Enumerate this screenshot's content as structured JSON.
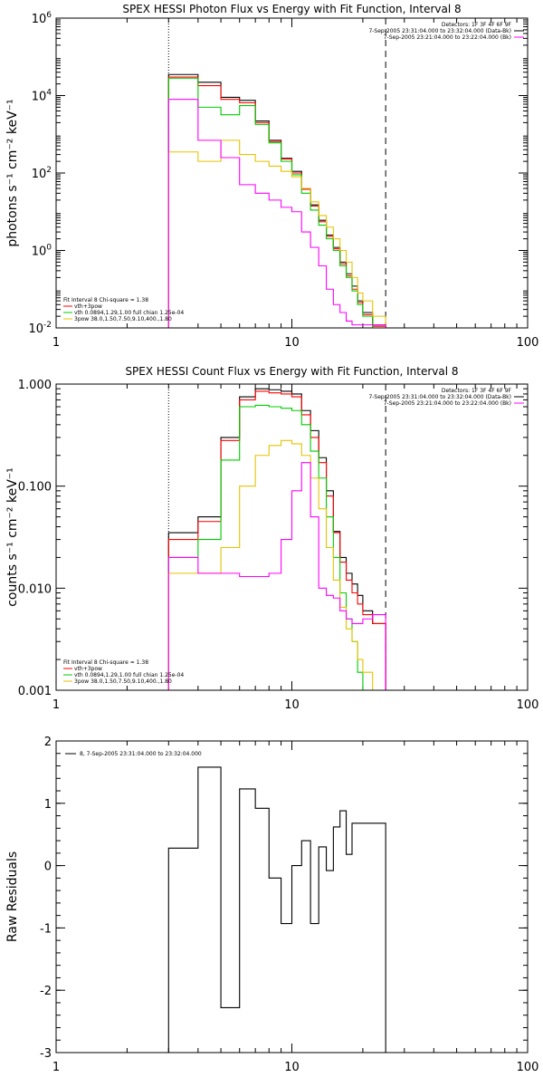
{
  "chart_data": [
    {
      "type": "line",
      "title": "SPEX HESSI Photon Flux vs Energy with Fit Function, Interval 8",
      "xlabel": "",
      "ylabel": "photons s⁻¹ cm⁻² keV⁻¹",
      "xscale": "log",
      "yscale": "log",
      "xlim": [
        1,
        100
      ],
      "ylim": [
        0.01,
        1000000
      ],
      "xticks": [
        1,
        10,
        100
      ],
      "xtick_labels": [
        "1",
        "10",
        "100"
      ],
      "yticks": [
        0.01,
        1,
        100,
        10000,
        1000000
      ],
      "ytick_labels": [
        {
          "base": "10",
          "exp": "-2"
        },
        {
          "base": "10",
          "exp": "0"
        },
        {
          "base": "10",
          "exp": "2"
        },
        {
          "base": "10",
          "exp": "4"
        },
        {
          "base": "10",
          "exp": "6"
        }
      ],
      "vlines": [
        {
          "x": 3,
          "style": "dotted"
        },
        {
          "x": 25,
          "style": "dashed"
        }
      ],
      "info_lines": [
        "Detectors: 1F 3F 4F 6F 9F",
        "7-Sep-2005 23:31:04.000 to 23:32:04.000 (Data-Bk)",
        "7-Sep-2005 23:21:04.000 to 23:22:04.000 (Bk)"
      ],
      "info_colors": [
        "#000000",
        "#000000",
        "#ff00ff"
      ],
      "legend_lines": [
        "Fit Interval 8   Chi-square = 1.38",
        "vth+3pow",
        "vth 0.0894,1.29,1.00  full chian 1.25e-04",
        "3pow 38.0,1.50,7.50,9.10,400.,1.80"
      ],
      "legend_colors": [
        "",
        "#ff0000",
        "#00cc00",
        "#e6c300"
      ],
      "edges": [
        3,
        4,
        5,
        6,
        7,
        8,
        9,
        10,
        11,
        12,
        13,
        14,
        15,
        16,
        17,
        18,
        19,
        20,
        22,
        25
      ],
      "series": [
        {
          "color": "#000000",
          "values": [
            35000,
            22000,
            9000,
            7500,
            2200,
            700,
            240,
            110,
            40,
            15,
            6,
            2.5,
            1.2,
            0.5,
            0.25,
            0.12,
            0.05,
            0.025,
            0.012
          ]
        },
        {
          "color": "#ff0000",
          "values": [
            30000,
            18000,
            8000,
            6500,
            2000,
            650,
            230,
            100,
            38,
            14,
            5.5,
            2.3,
            1.1,
            0.45,
            0.22,
            0.1,
            0.045,
            0.022,
            0.011
          ]
        },
        {
          "color": "#00cc00",
          "values": [
            28000,
            5000,
            3200,
            5500,
            1800,
            600,
            200,
            90,
            30,
            11,
            4.5,
            2,
            1,
            0.4,
            0.2,
            0.09,
            0.04,
            0.02,
            0.008
          ]
        },
        {
          "color": "#e6c300",
          "values": [
            350,
            200,
            700,
            300,
            200,
            150,
            110,
            80,
            40,
            18,
            8,
            4,
            2,
            1,
            0.5,
            0.2,
            0.08,
            0.05,
            0.02
          ]
        },
        {
          "color": "#ff00ff",
          "values": [
            8000,
            700,
            250,
            50,
            30,
            20,
            13,
            10,
            3,
            1.2,
            0.4,
            0.1,
            0.04,
            0.025,
            0.015,
            0.012,
            0.012,
            0.012,
            0.012
          ]
        }
      ]
    },
    {
      "type": "line",
      "title": "SPEX HESSI Count Flux vs Energy with Fit Function, Interval 8",
      "xlabel": "",
      "ylabel": "counts s⁻¹ cm⁻² keV⁻¹",
      "xscale": "log",
      "yscale": "log",
      "xlim": [
        1,
        100
      ],
      "ylim": [
        0.001,
        1
      ],
      "xticks": [
        1,
        10,
        100
      ],
      "xtick_labels": [
        "1",
        "10",
        "100"
      ],
      "yticks": [
        0.001,
        0.01,
        0.1,
        1
      ],
      "ytick_labels": [
        "0.001",
        "0.010",
        "0.100",
        "1.000"
      ],
      "vlines": [
        {
          "x": 3,
          "style": "dotted"
        },
        {
          "x": 25,
          "style": "dashed"
        }
      ],
      "info_lines": [
        "Detectors: 1F 3F 4F 6F 9F",
        "7-Sep-2005 23:31:04.000 to 23:32:04.000 (Data-Bk)",
        "7-Sep-2005 23:21:04.000 to 23:22:04.000 (Bk)"
      ],
      "info_colors": [
        "#000000",
        "#000000",
        "#ff00ff"
      ],
      "legend_lines": [
        "Fit Interval 8   Chi-square = 1.38",
        "vth+3pow",
        "vth 0.0894,1.29,1.00  full chian 1.25e-04",
        "3pow 38.0,1.50,7.50,9.10,400.,1.80"
      ],
      "legend_colors": [
        "",
        "#ff0000",
        "#00cc00",
        "#e6c300"
      ],
      "edges": [
        3,
        4,
        5,
        6,
        7,
        8,
        9,
        10,
        11,
        12,
        13,
        14,
        15,
        16,
        17,
        18,
        19,
        20,
        22,
        25
      ],
      "series": [
        {
          "color": "#000000",
          "values": [
            0.035,
            0.05,
            0.3,
            0.75,
            0.9,
            0.88,
            0.85,
            0.8,
            0.55,
            0.35,
            0.19,
            0.09,
            0.036,
            0.02,
            0.014,
            0.011,
            0.0085,
            0.006,
            0.0045
          ]
        },
        {
          "color": "#ff0000",
          "values": [
            0.03,
            0.045,
            0.28,
            0.7,
            0.85,
            0.82,
            0.8,
            0.75,
            0.5,
            0.3,
            0.17,
            0.08,
            0.035,
            0.018,
            0.012,
            0.009,
            0.007,
            0.0055,
            0.0045
          ]
        },
        {
          "color": "#00cc00",
          "values": [
            0.02,
            0.03,
            0.18,
            0.6,
            0.62,
            0.6,
            0.58,
            0.55,
            0.4,
            0.22,
            0.12,
            0.05,
            0.02,
            0.009,
            0.005,
            0.003,
            0.0015,
            0.001,
            0.001
          ]
        },
        {
          "color": "#e6c300",
          "values": [
            0.014,
            0.014,
            0.025,
            0.1,
            0.2,
            0.25,
            0.28,
            0.26,
            0.2,
            0.12,
            0.06,
            0.025,
            0.012,
            0.0065,
            0.004,
            0.003,
            0.002,
            0.0015,
            0.001
          ]
        },
        {
          "color": "#ff00ff",
          "values": [
            0.02,
            0.014,
            0.014,
            0.013,
            0.013,
            0.014,
            0.03,
            0.09,
            0.17,
            0.05,
            0.01,
            0.0085,
            0.008,
            0.006,
            0.005,
            0.0045,
            0.0045,
            0.005,
            0.0055
          ]
        }
      ]
    },
    {
      "type": "line",
      "title": "",
      "xlabel": "",
      "ylabel": "Raw Residuals",
      "xscale": "log",
      "yscale": "linear",
      "xlim": [
        1,
        100
      ],
      "ylim": [
        -3,
        2
      ],
      "xticks": [
        1,
        10,
        100
      ],
      "xtick_labels": [
        "1",
        "10",
        "100"
      ],
      "yticks": [
        -3,
        -2,
        -1,
        0,
        1,
        2
      ],
      "ytick_labels": [
        "-3",
        "-2",
        "-1",
        "0",
        "1",
        "2"
      ],
      "legend_entries": [
        {
          "label": "8,  7-Sep-2005 23:31:04.000 to 23:32:04.000",
          "color": "#000000"
        }
      ],
      "edges": [
        3,
        4,
        5,
        6,
        7,
        8,
        9,
        10,
        11,
        12,
        13,
        14,
        15,
        16,
        17,
        18,
        19,
        20,
        22,
        25
      ],
      "series": [
        {
          "name": "8,  7-Sep-2005 23:31:04.000 to 23:32:04.000",
          "color": "#000000",
          "values": [
            0.28,
            1.58,
            -2.28,
            1.23,
            0.92,
            -0.2,
            -0.93,
            0,
            0.4,
            -0.93,
            0.3,
            -0.08,
            0.62,
            0.88,
            0.18,
            0.68,
            0.68,
            0.68,
            0.68
          ]
        }
      ]
    }
  ]
}
